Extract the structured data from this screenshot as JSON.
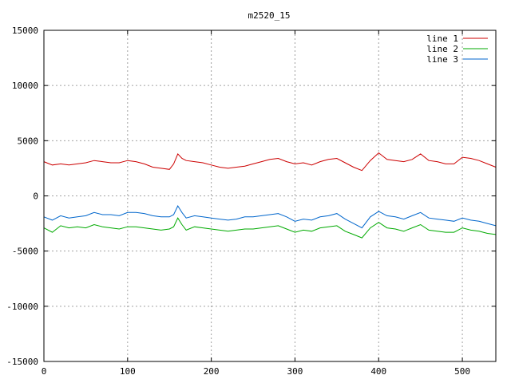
{
  "chart_data": {
    "type": "line",
    "title": "m2520_15",
    "xlabel": "",
    "ylabel": "",
    "xlim": [
      0,
      540
    ],
    "ylim": [
      -15000,
      15000
    ],
    "x_ticks": [
      0,
      100,
      200,
      300,
      400,
      500
    ],
    "y_ticks": [
      -15000,
      -10000,
      -5000,
      0,
      5000,
      10000,
      15000
    ],
    "x_tick_labels": [
      "0",
      "100",
      "200",
      "300",
      "400",
      "500"
    ],
    "y_tick_labels": [
      "-15000",
      "-10000",
      "-5000",
      "0",
      "5000",
      "10000",
      "15000"
    ],
    "grid": true,
    "legend_position": "top-right",
    "x": [
      0,
      10,
      20,
      30,
      40,
      50,
      60,
      70,
      80,
      90,
      100,
      110,
      120,
      130,
      140,
      150,
      155,
      160,
      165,
      170,
      180,
      190,
      200,
      210,
      220,
      230,
      240,
      250,
      260,
      270,
      280,
      290,
      300,
      310,
      320,
      330,
      340,
      350,
      360,
      370,
      380,
      390,
      400,
      410,
      420,
      430,
      440,
      450,
      460,
      470,
      480,
      490,
      500,
      510,
      520,
      530,
      540
    ],
    "series": [
      {
        "name": "line 1",
        "color": "#cc0000",
        "values": [
          3100,
          2800,
          2900,
          2800,
          2900,
          3000,
          3200,
          3100,
          3000,
          3000,
          3200,
          3100,
          2900,
          2600,
          2500,
          2400,
          2900,
          3800,
          3400,
          3200,
          3100,
          3000,
          2800,
          2600,
          2500,
          2600,
          2700,
          2900,
          3100,
          3300,
          3400,
          3100,
          2900,
          3000,
          2800,
          3100,
          3300,
          3400,
          3000,
          2600,
          2300,
          3200,
          3900,
          3300,
          3200,
          3100,
          3300,
          3800,
          3200,
          3100,
          2900,
          2900,
          3500,
          3400,
          3200,
          2900,
          2600
        ]
      },
      {
        "name": "line 2",
        "color": "#00aa00",
        "values": [
          -2900,
          -3300,
          -2700,
          -2900,
          -2800,
          -2900,
          -2600,
          -2800,
          -2900,
          -3000,
          -2800,
          -2800,
          -2900,
          -3000,
          -3100,
          -3000,
          -2800,
          -2000,
          -2600,
          -3100,
          -2800,
          -2900,
          -3000,
          -3100,
          -3200,
          -3100,
          -3000,
          -3000,
          -2900,
          -2800,
          -2700,
          -3000,
          -3300,
          -3100,
          -3200,
          -2900,
          -2800,
          -2700,
          -3200,
          -3500,
          -3800,
          -2900,
          -2400,
          -2900,
          -3000,
          -3200,
          -2900,
          -2600,
          -3100,
          -3200,
          -3300,
          -3300,
          -2900,
          -3100,
          -3200,
          -3400,
          -3500
        ]
      },
      {
        "name": "line 3",
        "color": "#0066cc",
        "values": [
          -1900,
          -2200,
          -1800,
          -2000,
          -1900,
          -1800,
          -1500,
          -1700,
          -1700,
          -1800,
          -1500,
          -1500,
          -1600,
          -1800,
          -1900,
          -1900,
          -1700,
          -900,
          -1500,
          -2000,
          -1800,
          -1900,
          -2000,
          -2100,
          -2200,
          -2100,
          -1900,
          -1900,
          -1800,
          -1700,
          -1600,
          -1900,
          -2300,
          -2100,
          -2200,
          -1900,
          -1800,
          -1600,
          -2100,
          -2500,
          -2900,
          -1900,
          -1400,
          -1800,
          -1900,
          -2100,
          -1800,
          -1500,
          -2000,
          -2100,
          -2200,
          -2300,
          -2000,
          -2200,
          -2300,
          -2500,
          -2700
        ]
      }
    ]
  }
}
